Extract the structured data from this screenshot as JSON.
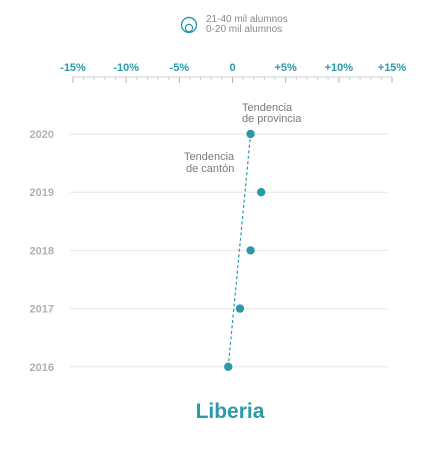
{
  "legend": {
    "items": [
      {
        "label": "21-40 mil alumnos"
      },
      {
        "label": "0-20 mil alumnos"
      }
    ]
  },
  "colors": {
    "accent": "#2a9aa8",
    "grid": "#e6e6e6",
    "tick": "#b0b0b0"
  },
  "chart_data": {
    "type": "scatter",
    "title": "Liberia",
    "x_ticks": [
      "-15%",
      "-10%",
      "-5%",
      "0",
      "+5%",
      "+10%",
      "+15%"
    ],
    "x_tick_values": [
      -15,
      -10,
      -5,
      0,
      5,
      10,
      15
    ],
    "xlim": [
      -15,
      15
    ],
    "y_categories": [
      "2020",
      "2019",
      "2018",
      "2017",
      "2016"
    ],
    "grid": true,
    "series": [
      {
        "points": [
          {
            "year": "2020",
            "x": 1.7
          },
          {
            "year": "2019",
            "x": 2.7
          },
          {
            "year": "2018",
            "x": 1.7
          },
          {
            "year": "2017",
            "x": 0.7
          },
          {
            "year": "2016",
            "x": -0.4
          }
        ]
      }
    ],
    "trend_line": {
      "from": {
        "year": "2016",
        "x": -0.4
      },
      "to": {
        "year": "2020",
        "x": 1.7
      }
    },
    "annotations": [
      {
        "text": [
          "Tendencia",
          "de provincia"
        ]
      },
      {
        "text": [
          "Tendencia",
          "de cantón"
        ]
      }
    ]
  }
}
